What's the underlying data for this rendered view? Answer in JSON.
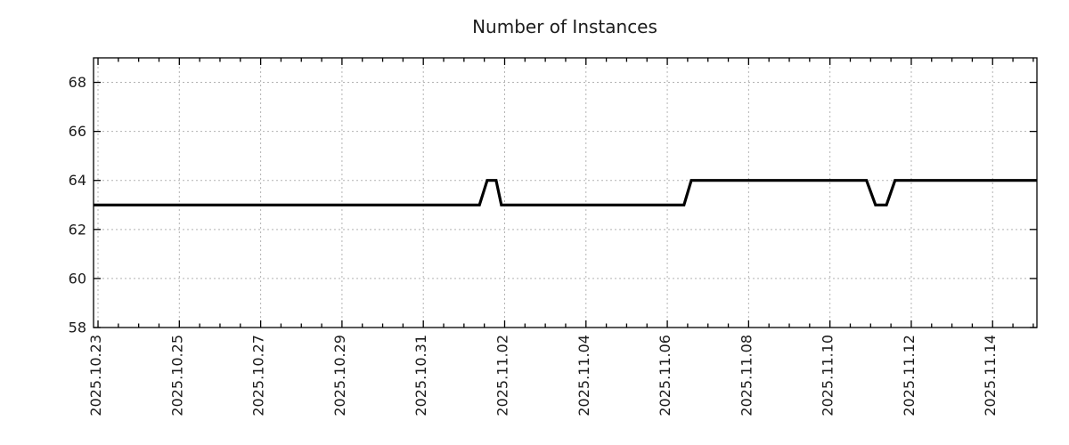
{
  "title": "Number of Instances",
  "chart_data": {
    "type": "line",
    "title": "Number of Instances",
    "xlabel": "",
    "ylabel": "",
    "legend": "none",
    "grid": {
      "show": true,
      "color": "#b3b3b3",
      "style": "dotted"
    },
    "line_color": "#000000",
    "line_width": 3,
    "x_axis": {
      "unit": "days since 2025-10-23 00:00",
      "min": -0.11,
      "max": 23.09,
      "major_tick_interval_days": 2,
      "minor_tick_interval_days": 0.5,
      "tick_label_days": [
        0,
        2,
        4,
        6,
        8,
        10,
        12,
        14,
        16,
        18,
        20,
        22
      ],
      "tick_labels": [
        "2025.10.23",
        "2025.10.25",
        "2025.10.27",
        "2025.10.29",
        "2025.10.31",
        "2025.11.02",
        "2025.11.04",
        "2025.11.06",
        "2025.11.08",
        "2025.11.10",
        "2025.11.12",
        "2025.11.14"
      ]
    },
    "y_axis": {
      "min": 58,
      "max": 69,
      "tick_values": [
        58,
        60,
        62,
        64,
        66,
        68
      ],
      "tick_labels": [
        "58",
        "60",
        "62",
        "64",
        "66",
        "68"
      ]
    },
    "points": [
      {
        "x": -0.11,
        "y": 63
      },
      {
        "x": 9.38,
        "y": 63
      },
      {
        "x": 9.57,
        "y": 64
      },
      {
        "x": 9.79,
        "y": 64
      },
      {
        "x": 9.92,
        "y": 63
      },
      {
        "x": 14.41,
        "y": 63
      },
      {
        "x": 14.59,
        "y": 64
      },
      {
        "x": 18.9,
        "y": 64
      },
      {
        "x": 19.12,
        "y": 63
      },
      {
        "x": 19.39,
        "y": 63
      },
      {
        "x": 19.6,
        "y": 64
      },
      {
        "x": 23.09,
        "y": 64
      }
    ],
    "transitions": [
      {
        "approx_time": "2025.11.01 ~09:00-14:00",
        "from": 63,
        "to": 64
      },
      {
        "approx_time": "2025.11.01 ~19:00-22:00",
        "from": 64,
        "to": 63
      },
      {
        "approx_time": "2025.11.06 ~10:00-14:00",
        "from": 63,
        "to": 64
      },
      {
        "approx_time": "2025.11.10 ~22:00 - 11.11 ~03:00",
        "from": 64,
        "to": 63
      },
      {
        "approx_time": "2025.11.11 ~09:00-14:00",
        "from": 63,
        "to": 64
      }
    ]
  }
}
